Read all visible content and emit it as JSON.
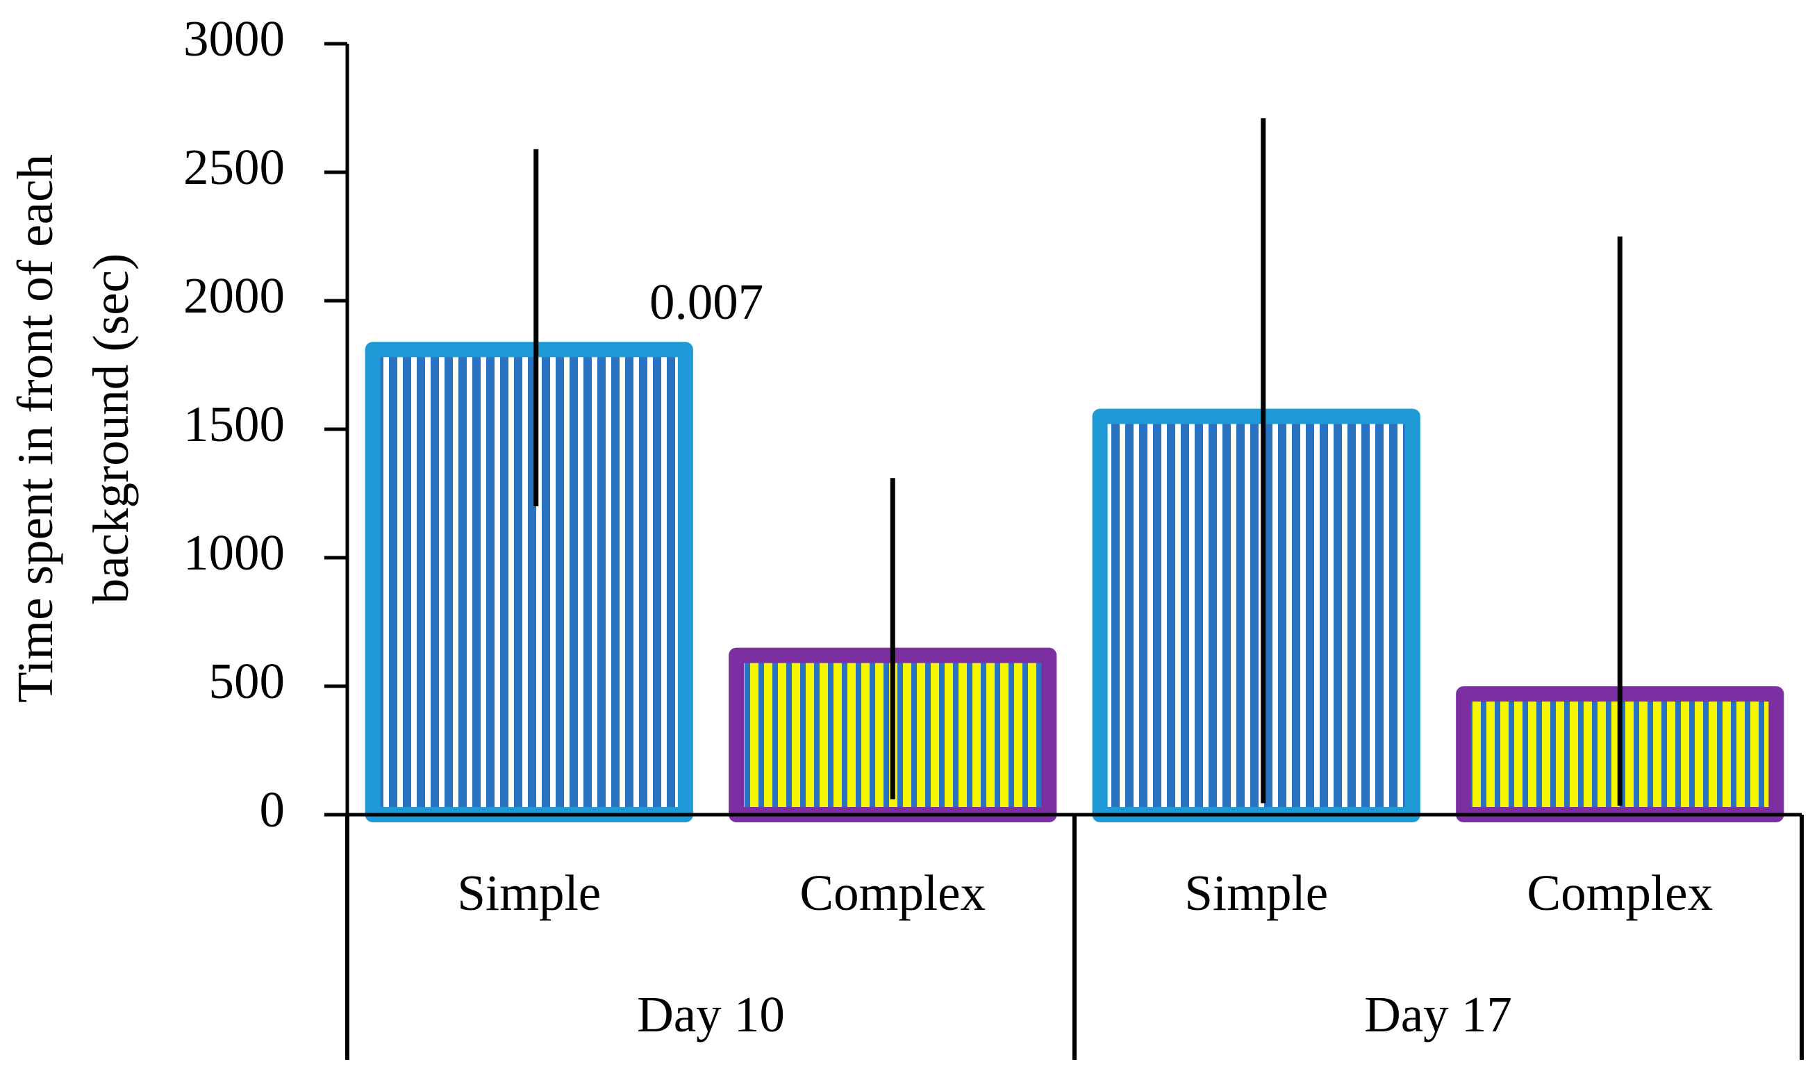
{
  "chart_data": {
    "type": "bar",
    "ylabel": [
      "Time spent in front of each",
      "background (sec)"
    ],
    "annotation": "0.007",
    "categories": [
      "Simple",
      "Complex",
      "Simple",
      "Complex"
    ],
    "groups": [
      "Day 10",
      "Day 17"
    ],
    "values": [
      1810,
      620,
      1550,
      470
    ],
    "error_low": [
      1200,
      60,
      45,
      35
    ],
    "error_high": [
      2590,
      1310,
      2710,
      2250
    ],
    "border_colors": [
      "#1f9ad6",
      "#7b2fa0",
      "#1f9ad6",
      "#7b2fa0"
    ],
    "stripe_colors": [
      "#2a72c2",
      "#f5f500",
      "#2a72c2",
      "#f5f500"
    ],
    "ylim": [
      0,
      3000
    ],
    "yticks": [
      0,
      500,
      1000,
      1500,
      2000,
      2500,
      3000
    ]
  }
}
